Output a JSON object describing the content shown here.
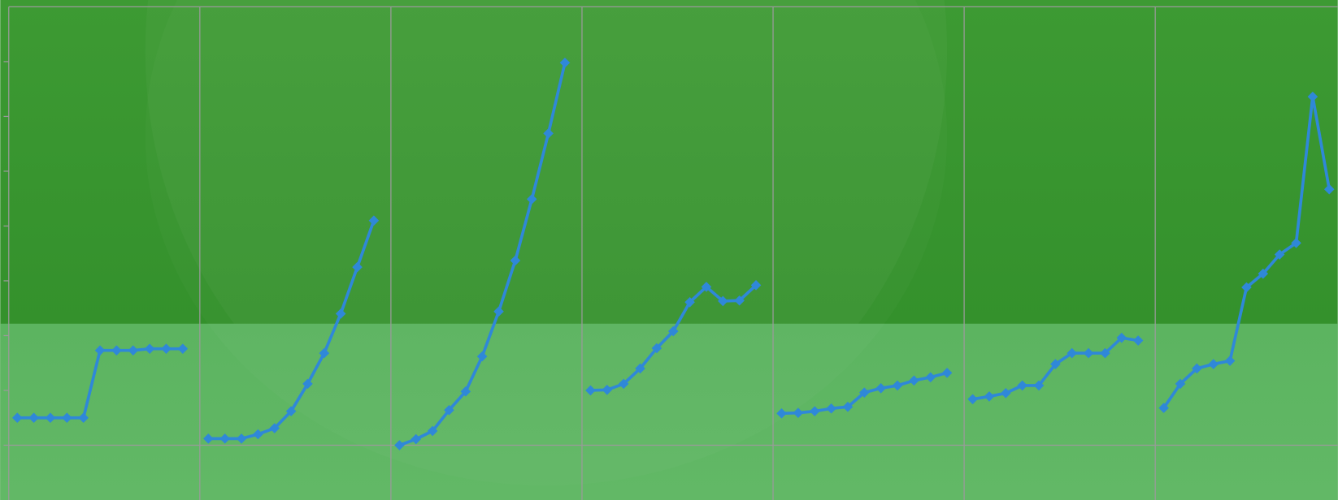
{
  "chart_data": {
    "type": "line",
    "ylim": [
      -1,
      8
    ],
    "yticks": [
      0,
      1,
      2,
      3,
      4,
      5,
      6,
      7
    ],
    "marker": "diamond",
    "series": [
      {
        "color": "#2f88d8",
        "values": [
          0.5,
          0.5,
          0.5,
          0.5,
          0.5,
          1.73,
          1.73,
          1.73,
          1.76,
          1.76,
          1.76
        ]
      },
      {
        "color": "#2f88d8",
        "values": [
          0.12,
          0.12,
          0.12,
          0.2,
          0.31,
          0.62,
          1.12,
          1.68,
          2.4,
          3.25,
          4.1
        ]
      },
      {
        "color": "#2f88d8",
        "values": [
          0,
          0.11,
          0.26,
          0.64,
          0.98,
          1.62,
          2.44,
          3.37,
          4.49,
          5.69,
          6.98
        ]
      },
      {
        "color": "#2f88d8",
        "values": [
          1.0,
          1.01,
          1.12,
          1.4,
          1.77,
          2.08,
          2.61,
          2.89,
          2.63,
          2.64,
          2.92
        ]
      },
      {
        "color": "#2f88d8",
        "values": [
          0.58,
          0.59,
          0.62,
          0.67,
          0.7,
          0.96,
          1.04,
          1.09,
          1.18,
          1.24,
          1.32
        ]
      },
      {
        "color": "#2f88d8",
        "values": [
          0.84,
          0.89,
          0.95,
          1.09,
          1.09,
          1.48,
          1.68,
          1.68,
          1.68,
          1.96,
          1.91
        ]
      },
      {
        "color": "#2f88d8",
        "values": [
          0.68,
          1.12,
          1.4,
          1.48,
          1.54,
          2.88,
          3.13,
          3.48,
          3.69,
          6.36,
          4.67
        ]
      }
    ]
  }
}
